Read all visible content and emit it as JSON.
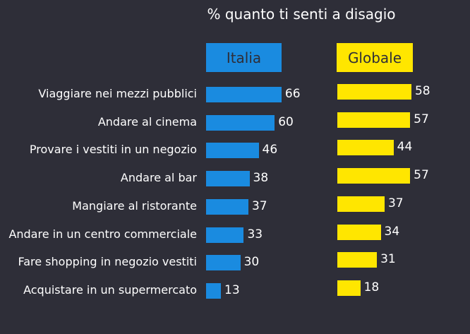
{
  "chart_data": {
    "type": "bar",
    "title": "% quanto ti senti a disagio",
    "categories": [
      "Viaggiare nei mezzi pubblici",
      "Andare al cinema",
      "Provare i vestiti in un negozio",
      "Andare al bar",
      "Mangiare al ristorante",
      "Andare in un centro commerciale",
      "Fare shopping in negozio vestiti",
      "Acquistare in un supermercato"
    ],
    "series": [
      {
        "name": "Italia",
        "color": "#1a8be0",
        "values": [
          66,
          60,
          46,
          38,
          37,
          33,
          30,
          13
        ]
      },
      {
        "name": "Globale",
        "color": "#ffe600",
        "values": [
          58,
          57,
          44,
          57,
          37,
          34,
          31,
          18
        ]
      }
    ],
    "xlabel": "",
    "ylabel": "",
    "grid": false
  }
}
